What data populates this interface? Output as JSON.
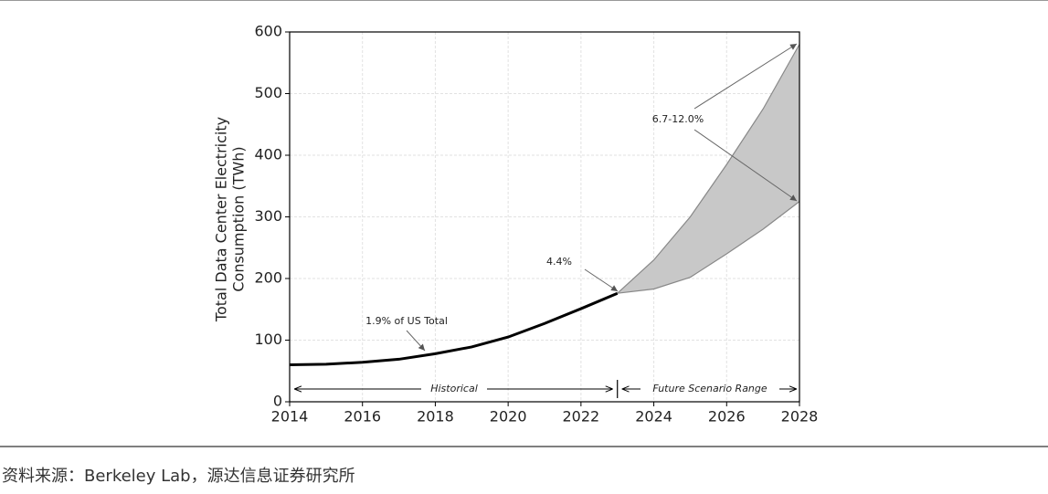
{
  "chart_data": {
    "type": "range-line",
    "ylabel": [
      "Total Data Center Electricity",
      "Consumption (TWh)"
    ],
    "xlim": [
      2014,
      2028
    ],
    "xticks": [
      2014,
      2016,
      2018,
      2020,
      2022,
      2024,
      2026,
      2028
    ],
    "ylim": [
      0,
      600
    ],
    "yticks": [
      0,
      100,
      200,
      300,
      400,
      500,
      600
    ],
    "grid": true,
    "historical": {
      "color": "#000000",
      "x": [
        2014,
        2015,
        2016,
        2017,
        2018,
        2019,
        2020,
        2021,
        2022,
        2023
      ],
      "values": [
        60,
        61,
        64,
        69,
        78,
        89,
        105,
        127,
        151,
        176
      ]
    },
    "scenario_range": {
      "color": "#c8c8c8",
      "x": [
        2023,
        2024,
        2025,
        2026,
        2027,
        2028
      ],
      "low": [
        176,
        183,
        202,
        240,
        280,
        325
      ],
      "high": [
        176,
        230,
        300,
        385,
        475,
        580
      ]
    },
    "annotations": [
      "1.9% of US Total",
      "4.4%",
      "6.7-12.0%"
    ],
    "periods": [
      "Historical",
      "Future Scenario Range"
    ]
  },
  "source": "资料来源：Berkeley Lab，源达信息证券研究所"
}
